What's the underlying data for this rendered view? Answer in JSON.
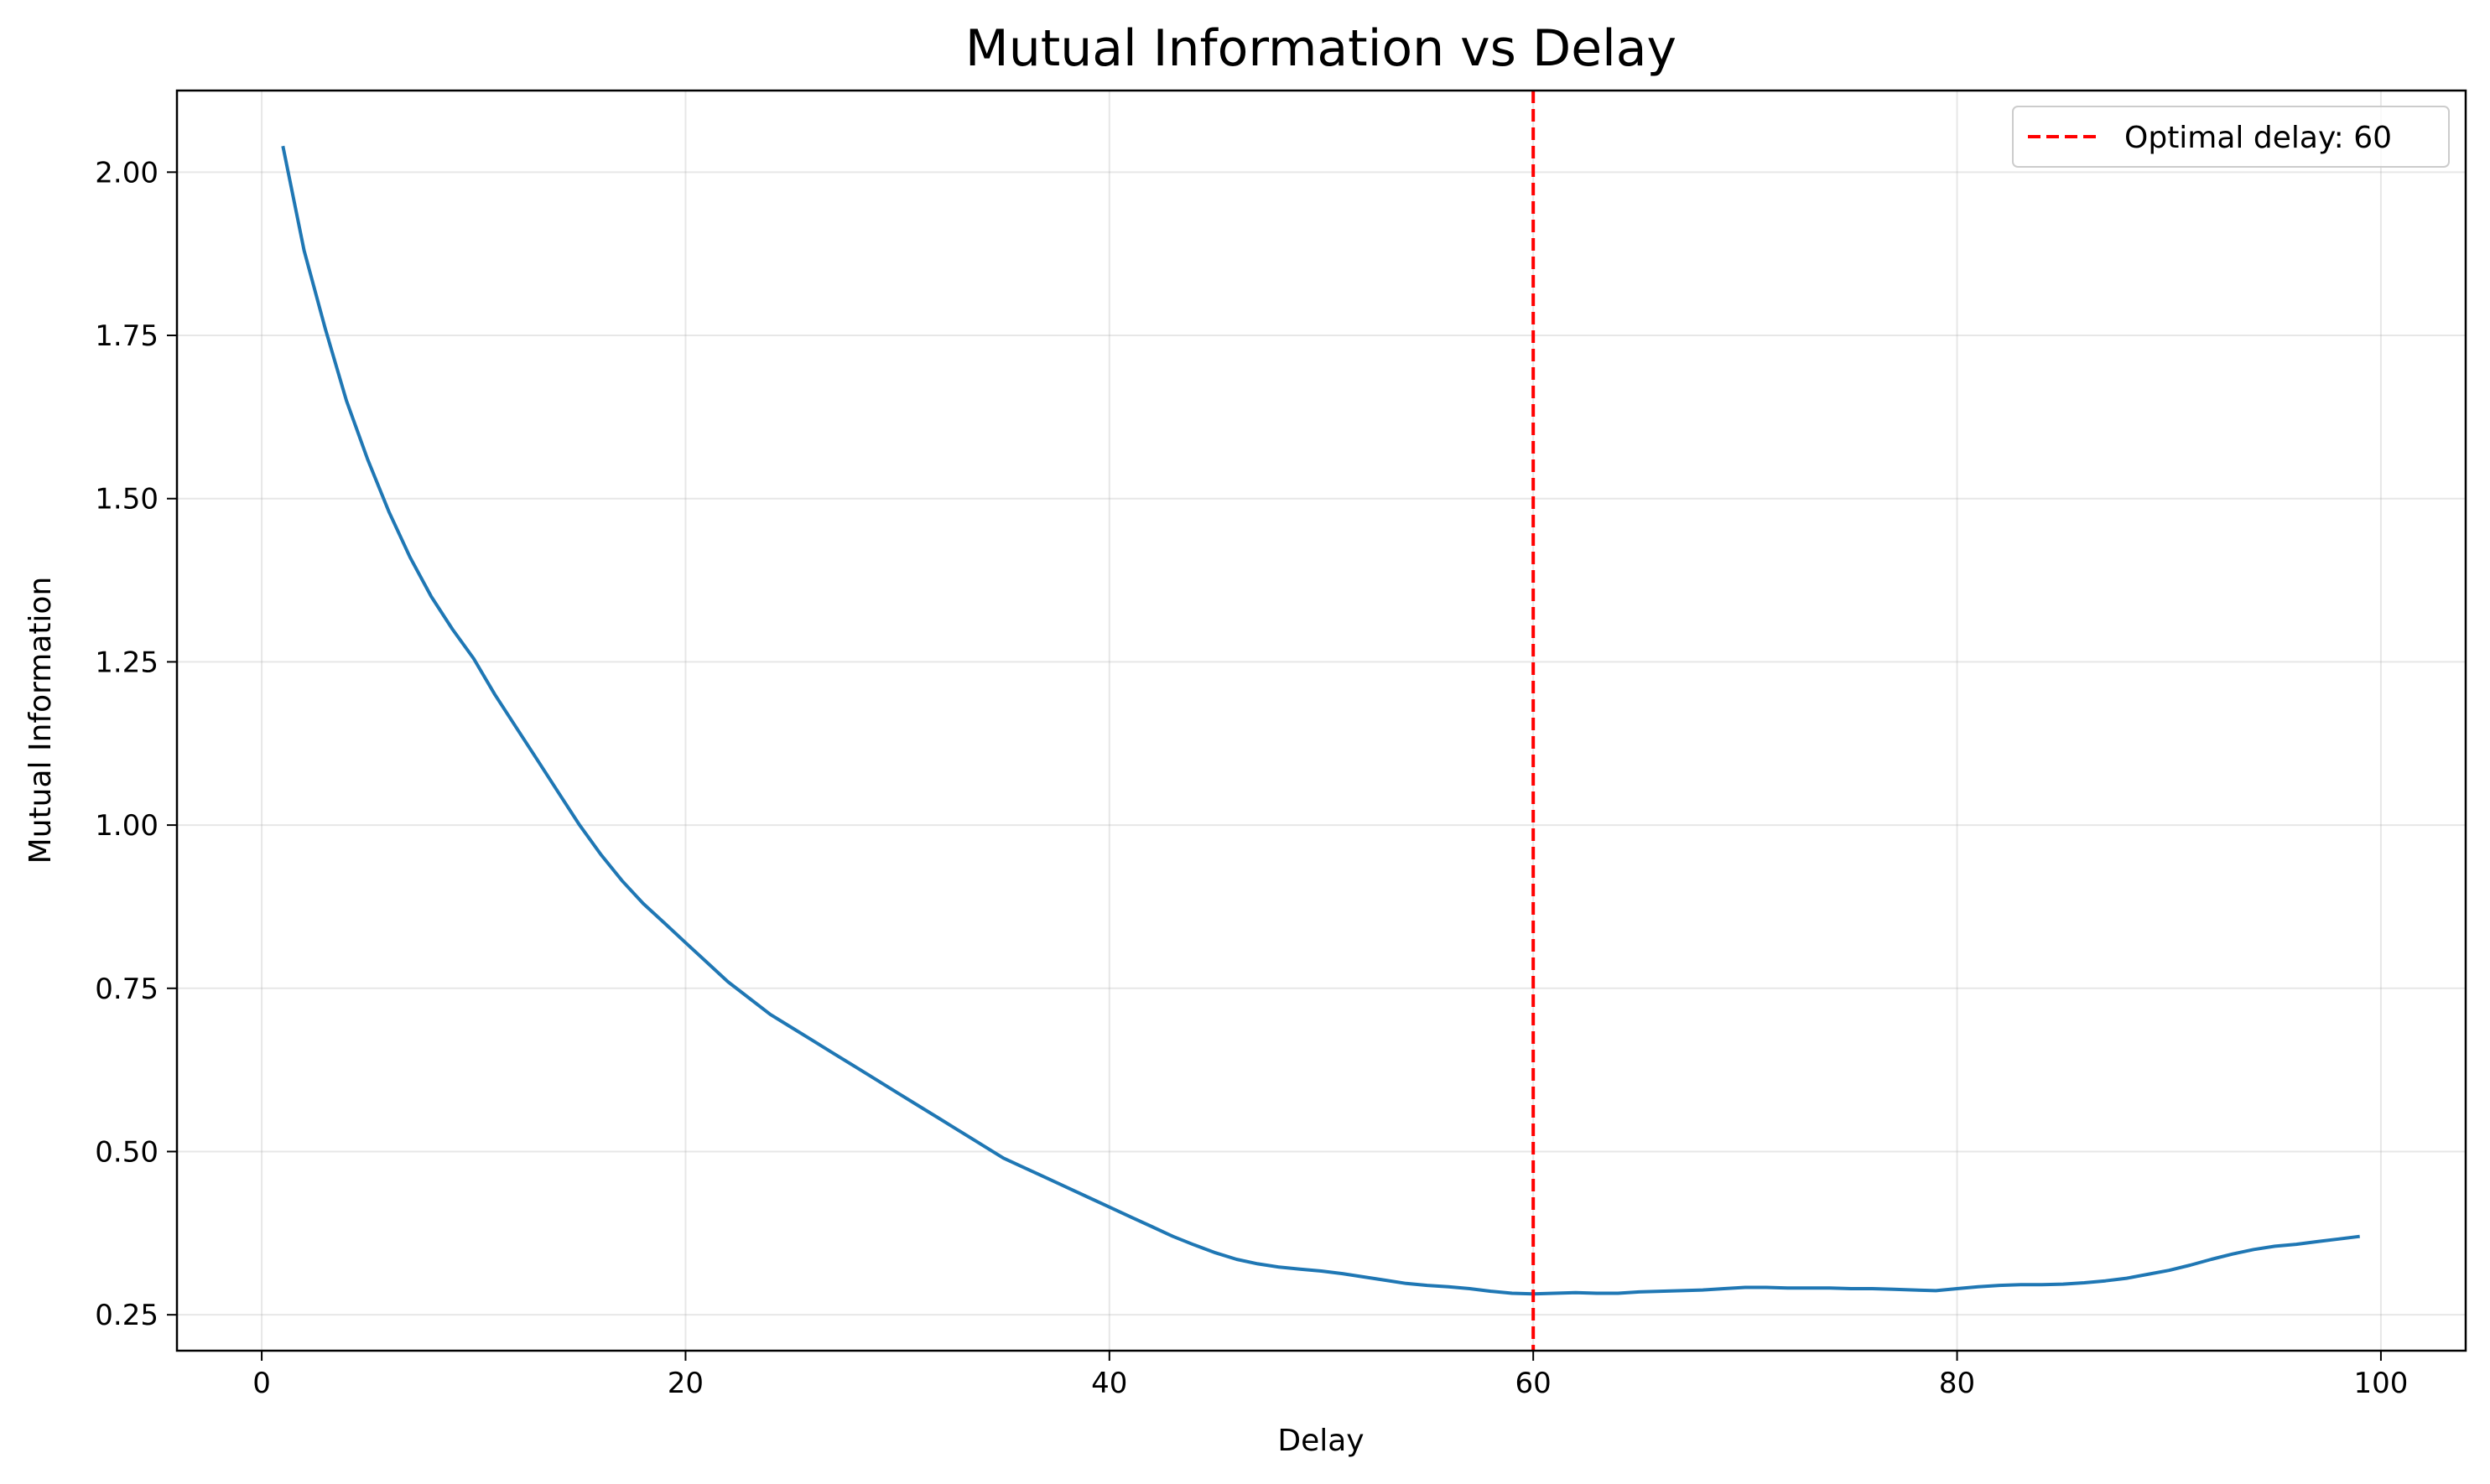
{
  "chart_data": {
    "type": "line",
    "title": "Mutual Information vs Delay",
    "xlabel": "Delay",
    "ylabel": "Mutual Information",
    "xlim": [
      -4,
      104
    ],
    "ylim": [
      0.195,
      2.125
    ],
    "xticks": [
      0,
      20,
      40,
      60,
      80,
      100
    ],
    "yticks": [
      0.25,
      0.5,
      0.75,
      1.0,
      1.25,
      1.5,
      1.75,
      2.0
    ],
    "xtick_labels": [
      "0",
      "20",
      "40",
      "60",
      "80",
      "100"
    ],
    "ytick_labels": [
      "0.25",
      "0.50",
      "0.75",
      "1.00",
      "1.25",
      "1.50",
      "1.75",
      "2.00"
    ],
    "grid": true,
    "legend_position": "top-right",
    "series": [
      {
        "color": "#1f77b4",
        "style": "solid",
        "x": [
          1,
          2,
          3,
          4,
          5,
          6,
          7,
          8,
          9,
          10,
          11,
          12,
          13,
          14,
          15,
          16,
          17,
          18,
          19,
          20,
          21,
          22,
          23,
          24,
          25,
          26,
          27,
          28,
          29,
          30,
          31,
          32,
          33,
          34,
          35,
          36,
          37,
          38,
          39,
          40,
          41,
          42,
          43,
          44,
          45,
          46,
          47,
          48,
          49,
          50,
          51,
          52,
          53,
          54,
          55,
          56,
          57,
          58,
          59,
          60,
          61,
          62,
          63,
          64,
          65,
          66,
          67,
          68,
          69,
          70,
          71,
          72,
          73,
          74,
          75,
          76,
          77,
          78,
          79,
          80,
          81,
          82,
          83,
          84,
          85,
          86,
          87,
          88,
          89,
          90,
          91,
          92,
          93,
          94,
          95,
          96,
          97,
          98,
          99
        ],
        "values": [
          2.04,
          1.88,
          1.76,
          1.65,
          1.56,
          1.48,
          1.41,
          1.35,
          1.3,
          1.255,
          1.2,
          1.15,
          1.1,
          1.05,
          1.0,
          0.955,
          0.915,
          0.88,
          0.85,
          0.82,
          0.79,
          0.76,
          0.735,
          0.71,
          0.69,
          0.67,
          0.65,
          0.63,
          0.61,
          0.59,
          0.57,
          0.55,
          0.53,
          0.51,
          0.49,
          0.475,
          0.46,
          0.445,
          0.43,
          0.415,
          0.4,
          0.385,
          0.37,
          0.357,
          0.345,
          0.335,
          0.328,
          0.323,
          0.32,
          0.317,
          0.313,
          0.308,
          0.303,
          0.298,
          0.295,
          0.293,
          0.29,
          0.286,
          0.283,
          0.282,
          0.283,
          0.284,
          0.283,
          0.283,
          0.285,
          0.286,
          0.287,
          0.288,
          0.29,
          0.292,
          0.292,
          0.291,
          0.291,
          0.291,
          0.29,
          0.29,
          0.289,
          0.288,
          0.287,
          0.29,
          0.293,
          0.295,
          0.296,
          0.296,
          0.297,
          0.299,
          0.302,
          0.306,
          0.312,
          0.318,
          0.326,
          0.335,
          0.343,
          0.35,
          0.355,
          0.358,
          0.362,
          0.366,
          0.37
        ]
      },
      {
        "name": "Optimal delay: 60",
        "type": "vline",
        "x": 60,
        "color": "#ff0000",
        "style": "dashed"
      }
    ]
  }
}
